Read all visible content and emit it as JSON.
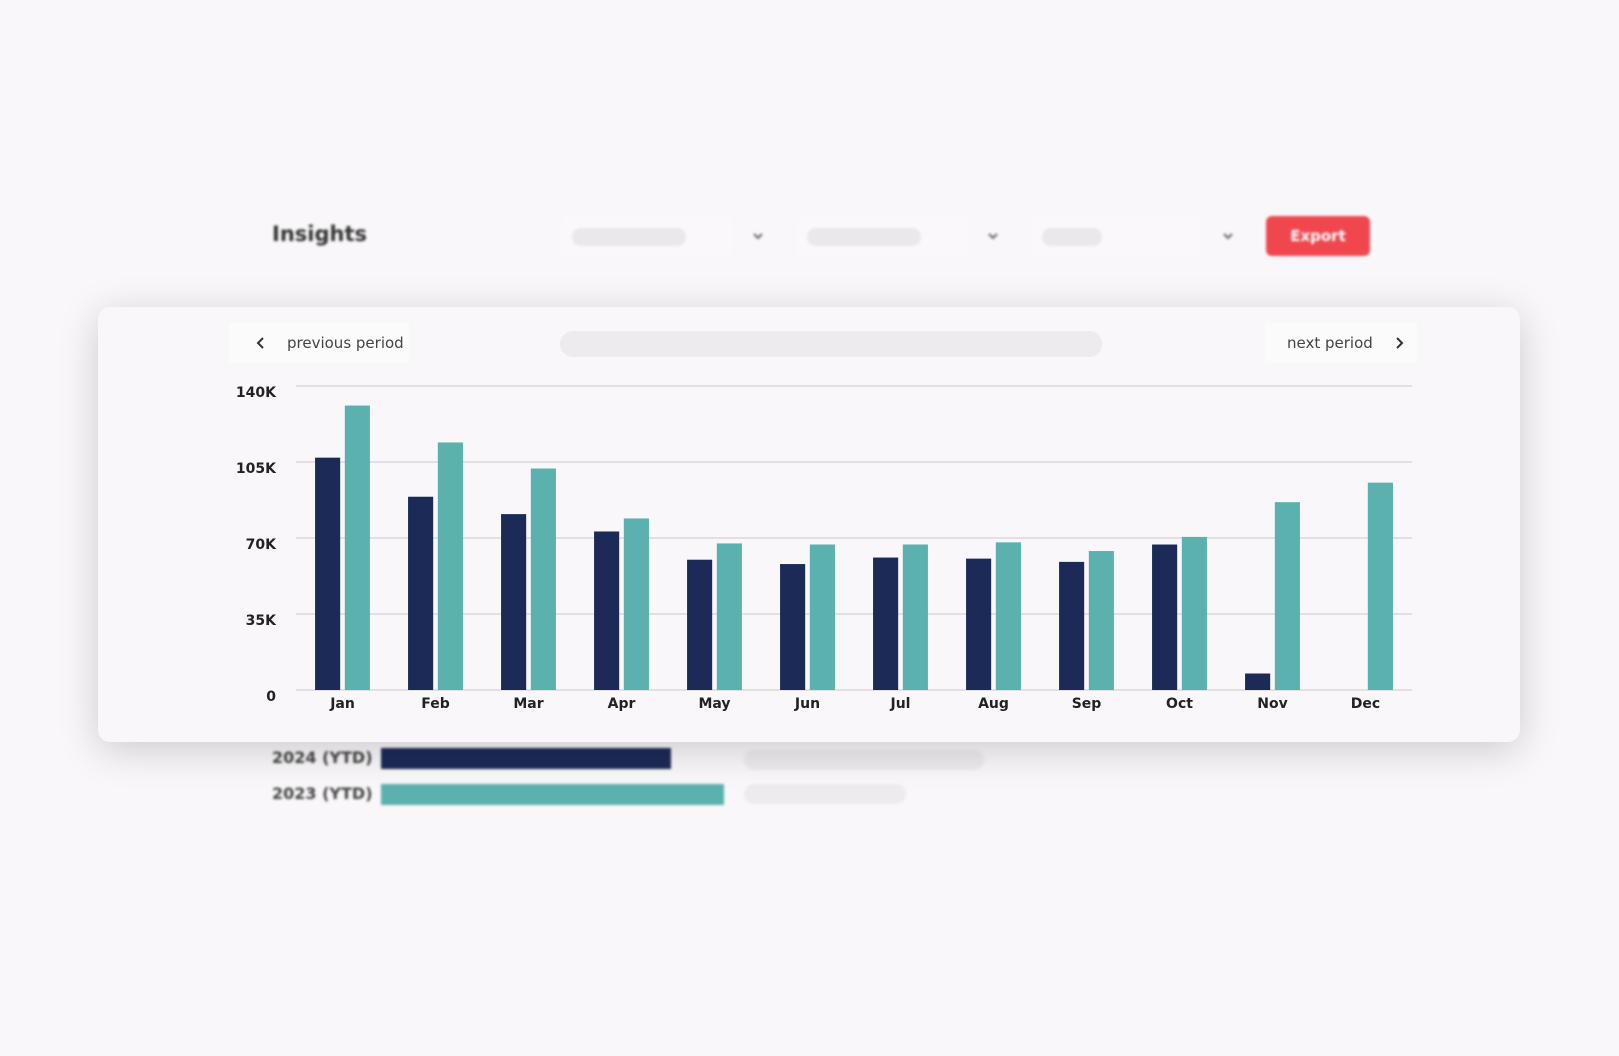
{
  "header": {
    "title": "Insights",
    "export": "Export"
  },
  "nav": {
    "previous": "previous period",
    "next": "next period"
  },
  "chart_data": {
    "type": "bar",
    "categories": [
      "Jan",
      "Feb",
      "Mar",
      "Apr",
      "May",
      "Jun",
      "Jul",
      "Aug",
      "Sep",
      "Oct",
      "Nov",
      "Dec"
    ],
    "series": [
      {
        "name": "2024 (YTD)",
        "color": "#1c2a57",
        "values": [
          107000,
          89000,
          81000,
          73000,
          60000,
          58000,
          61000,
          60500,
          59000,
          67000,
          7600,
          null
        ]
      },
      {
        "name": "2023 (YTD)",
        "color": "#5bb1ae",
        "values": [
          131000,
          114000,
          102000,
          79000,
          67500,
          67000,
          67000,
          68000,
          64000,
          70500,
          86500,
          95500
        ]
      }
    ],
    "ylim": [
      0,
      140000
    ],
    "yticks": [
      {
        "value": 0,
        "label": "0"
      },
      {
        "value": 35000,
        "label": "35K"
      },
      {
        "value": 70000,
        "label": "70K"
      },
      {
        "value": 105000,
        "label": "105K"
      },
      {
        "value": 140000,
        "label": "140K"
      }
    ],
    "grid": true
  }
}
